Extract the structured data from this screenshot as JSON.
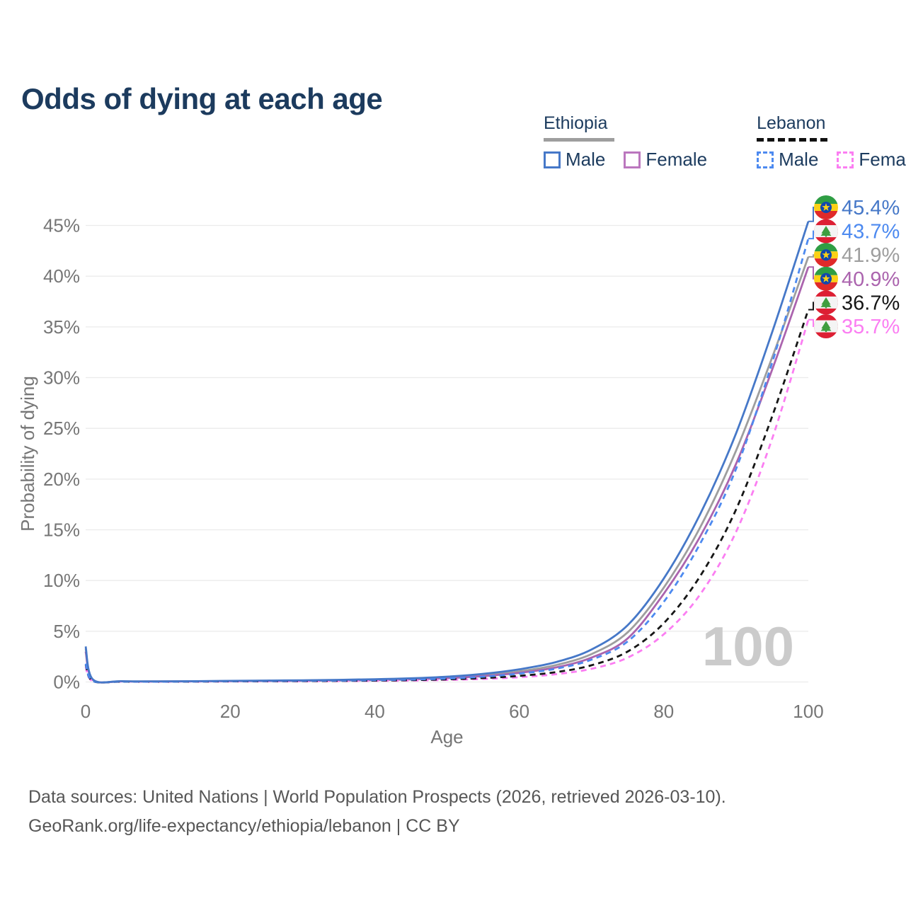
{
  "title": "Odds of dying at each age",
  "legend": {
    "groups": [
      {
        "label": "Ethiopia",
        "line_style": "solid",
        "underline_color": "#9e9e9e",
        "items": [
          {
            "label": "Male",
            "color": "#4678c8",
            "dashed": false
          },
          {
            "label": "Female",
            "color": "#bb77be",
            "dashed": false
          }
        ]
      },
      {
        "label": "Lebanon",
        "line_style": "dashed",
        "underline_color": "#111111",
        "items": [
          {
            "label": "Male",
            "color": "#4d8af0",
            "dashed": true
          },
          {
            "label": "Female",
            "color": "#fb7ef2",
            "dashed": true
          }
        ]
      }
    ]
  },
  "chart_data": {
    "type": "line",
    "title": "Odds of dying at each age",
    "xlabel": "Age",
    "ylabel": "Probability of dying",
    "xlim": [
      0,
      100
    ],
    "ylim": [
      0,
      47
    ],
    "xticks": [
      0,
      20,
      40,
      60,
      80,
      100
    ],
    "yticks": [
      0,
      5,
      10,
      15,
      20,
      25,
      30,
      35,
      40,
      45
    ],
    "ytick_suffix": "%",
    "grid": "horizontal",
    "watermark": "100",
    "axis_color": "#767676",
    "grid_color": "#ebebeb",
    "watermark_color": "#cbcbcb",
    "series": [
      {
        "name": "Ethiopia male",
        "country": "Ethiopia",
        "sex": "male",
        "color": "#4678c8",
        "dashed": false,
        "flag": "ethiopia",
        "end_label": "45.4%",
        "end_value": 45.4,
        "points": [
          [
            0,
            3.5
          ],
          [
            1,
            0.25
          ],
          [
            5,
            0.08
          ],
          [
            10,
            0.06
          ],
          [
            15,
            0.08
          ],
          [
            20,
            0.11
          ],
          [
            25,
            0.14
          ],
          [
            30,
            0.17
          ],
          [
            35,
            0.21
          ],
          [
            40,
            0.27
          ],
          [
            45,
            0.36
          ],
          [
            50,
            0.52
          ],
          [
            55,
            0.8
          ],
          [
            60,
            1.25
          ],
          [
            65,
            1.95
          ],
          [
            70,
            3.2
          ],
          [
            75,
            5.6
          ],
          [
            80,
            10.2
          ],
          [
            85,
            16.5
          ],
          [
            90,
            24.5
          ],
          [
            95,
            34.5
          ],
          [
            100,
            45.4
          ]
        ]
      },
      {
        "name": "Lebanon male",
        "country": "Lebanon",
        "sex": "male",
        "color": "#4d8af0",
        "dashed": true,
        "flag": "lebanon",
        "end_label": "43.7%",
        "end_value": 43.7,
        "points": [
          [
            0,
            1.8
          ],
          [
            1,
            0.1
          ],
          [
            5,
            0.04
          ],
          [
            10,
            0.03
          ],
          [
            15,
            0.05
          ],
          [
            20,
            0.08
          ],
          [
            25,
            0.1
          ],
          [
            30,
            0.12
          ],
          [
            35,
            0.14
          ],
          [
            40,
            0.18
          ],
          [
            45,
            0.24
          ],
          [
            50,
            0.34
          ],
          [
            55,
            0.52
          ],
          [
            60,
            0.82
          ],
          [
            65,
            1.3
          ],
          [
            70,
            2.2
          ],
          [
            75,
            4.0
          ],
          [
            80,
            7.9
          ],
          [
            85,
            13.6
          ],
          [
            90,
            21.0
          ],
          [
            95,
            31.5
          ],
          [
            100,
            43.7
          ]
        ]
      },
      {
        "name": "Ethiopia both sexes",
        "country": "Ethiopia",
        "sex": "both",
        "color": "#9e9e9e",
        "dashed": false,
        "flag": "ethiopia",
        "end_label": "41.9%",
        "end_value": 41.9,
        "points": [
          [
            0,
            3.3
          ],
          [
            1,
            0.22
          ],
          [
            5,
            0.07
          ],
          [
            10,
            0.05
          ],
          [
            15,
            0.07
          ],
          [
            20,
            0.09
          ],
          [
            25,
            0.12
          ],
          [
            30,
            0.15
          ],
          [
            35,
            0.18
          ],
          [
            40,
            0.23
          ],
          [
            45,
            0.31
          ],
          [
            50,
            0.45
          ],
          [
            55,
            0.68
          ],
          [
            60,
            1.05
          ],
          [
            65,
            1.65
          ],
          [
            70,
            2.75
          ],
          [
            75,
            4.9
          ],
          [
            80,
            9.3
          ],
          [
            85,
            15.2
          ],
          [
            90,
            22.8
          ],
          [
            95,
            32.0
          ],
          [
            100,
            41.9
          ]
        ]
      },
      {
        "name": "Ethiopia female",
        "country": "Ethiopia",
        "sex": "female",
        "color": "#ab64ae",
        "dashed": false,
        "flag": "ethiopia",
        "end_label": "40.9%",
        "end_value": 40.9,
        "points": [
          [
            0,
            3.0
          ],
          [
            1,
            0.2
          ],
          [
            5,
            0.06
          ],
          [
            10,
            0.05
          ],
          [
            15,
            0.06
          ],
          [
            20,
            0.08
          ],
          [
            25,
            0.1
          ],
          [
            30,
            0.12
          ],
          [
            35,
            0.15
          ],
          [
            40,
            0.19
          ],
          [
            45,
            0.26
          ],
          [
            50,
            0.38
          ],
          [
            55,
            0.58
          ],
          [
            60,
            0.9
          ],
          [
            65,
            1.42
          ],
          [
            70,
            2.4
          ],
          [
            75,
            4.3
          ],
          [
            80,
            8.7
          ],
          [
            85,
            14.3
          ],
          [
            90,
            21.5
          ],
          [
            95,
            30.8
          ],
          [
            100,
            40.9
          ]
        ]
      },
      {
        "name": "Lebanon both sexes",
        "country": "Lebanon",
        "sex": "both",
        "color": "#161616",
        "dashed": true,
        "flag": "lebanon",
        "end_label": "36.7%",
        "end_value": 36.7,
        "points": [
          [
            0,
            1.7
          ],
          [
            1,
            0.09
          ],
          [
            5,
            0.03
          ],
          [
            10,
            0.03
          ],
          [
            15,
            0.04
          ],
          [
            20,
            0.06
          ],
          [
            25,
            0.08
          ],
          [
            30,
            0.09
          ],
          [
            35,
            0.11
          ],
          [
            40,
            0.14
          ],
          [
            45,
            0.18
          ],
          [
            50,
            0.26
          ],
          [
            55,
            0.39
          ],
          [
            60,
            0.6
          ],
          [
            65,
            0.96
          ],
          [
            70,
            1.65
          ],
          [
            75,
            3.0
          ],
          [
            80,
            5.8
          ],
          [
            85,
            10.4
          ],
          [
            90,
            17.0
          ],
          [
            95,
            26.2
          ],
          [
            100,
            36.7
          ]
        ]
      },
      {
        "name": "Lebanon female",
        "country": "Lebanon",
        "sex": "female",
        "color": "#fb7ef2",
        "dashed": true,
        "flag": "lebanon",
        "end_label": "35.7%",
        "end_value": 35.7,
        "points": [
          [
            0,
            1.5
          ],
          [
            1,
            0.08
          ],
          [
            5,
            0.03
          ],
          [
            10,
            0.02
          ],
          [
            15,
            0.03
          ],
          [
            20,
            0.05
          ],
          [
            25,
            0.06
          ],
          [
            30,
            0.07
          ],
          [
            35,
            0.09
          ],
          [
            40,
            0.11
          ],
          [
            45,
            0.14
          ],
          [
            50,
            0.2
          ],
          [
            55,
            0.3
          ],
          [
            60,
            0.47
          ],
          [
            65,
            0.76
          ],
          [
            70,
            1.3
          ],
          [
            75,
            2.4
          ],
          [
            80,
            4.7
          ],
          [
            85,
            8.6
          ],
          [
            90,
            14.8
          ],
          [
            95,
            24.0
          ],
          [
            100,
            35.7
          ]
        ]
      }
    ],
    "flag_colors": {
      "ethiopia": {
        "green": "#2f9e44",
        "yellow": "#fcd116",
        "red": "#e02a2a",
        "blue": "#0f47af",
        "star": "#fcd116"
      },
      "lebanon": {
        "red": "#dd1f33",
        "white": "#f4f4f4",
        "cedar": "#3f9e3f"
      }
    }
  },
  "footer": {
    "line1": "Data sources: United Nations | World Population Prospects (2026, retrieved 2026-03-10).",
    "line2": "GeoRank.org/life-expectancy/ethiopia/lebanon | CC BY"
  }
}
